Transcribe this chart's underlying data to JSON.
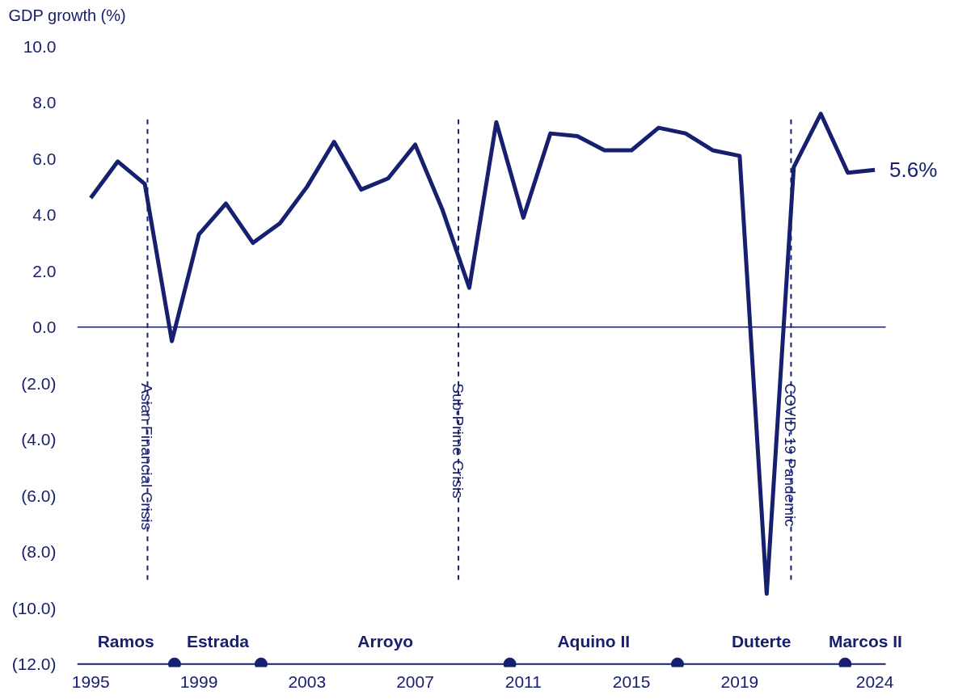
{
  "chart_data": {
    "type": "line",
    "ylabel": "GDP growth (%)",
    "x": [
      1995,
      1996,
      1997,
      1998,
      1999,
      2000,
      2001,
      2002,
      2003,
      2004,
      2005,
      2006,
      2007,
      2008,
      2009,
      2010,
      2011,
      2012,
      2013,
      2014,
      2015,
      2016,
      2017,
      2018,
      2019,
      2020,
      2021,
      2022,
      2023,
      2024
    ],
    "series": [
      {
        "color": "#17206e",
        "values": [
          4.6,
          5.9,
          5.1,
          -0.5,
          3.3,
          4.4,
          3.0,
          3.7,
          5.0,
          6.6,
          4.9,
          5.3,
          6.5,
          4.2,
          1.4,
          7.3,
          3.9,
          6.9,
          6.8,
          6.3,
          6.3,
          7.1,
          6.9,
          6.3,
          6.1,
          -9.5,
          5.7,
          7.6,
          5.5,
          5.6
        ],
        "value_labels": [
          null,
          null,
          null,
          null,
          null,
          null,
          null,
          null,
          null,
          null,
          null,
          null,
          null,
          null,
          null,
          null,
          null,
          null,
          null,
          null,
          null,
          null,
          null,
          null,
          null,
          null,
          null,
          null,
          null,
          "5.6%"
        ]
      },
      {
        "type": "scatter",
        "color": "#17206e",
        "marker": "circle",
        "x": [
          1998.1,
          2001.3,
          2010.5,
          2016.7,
          2022.9
        ],
        "values": [
          -12,
          -12,
          -12,
          -12,
          -12
        ]
      }
    ],
    "xlim": [
      1994.5,
      2024.4
    ],
    "xticks": [
      1995,
      1999,
      2003,
      2007,
      2011,
      2015,
      2019,
      2024
    ],
    "ylim": [
      -12,
      10
    ],
    "yticks": [
      {
        "value": -12,
        "label": "(12.0)"
      },
      {
        "value": -10,
        "label": "(10.0)"
      },
      {
        "value": -8,
        "label": "(8.0)"
      },
      {
        "value": -6,
        "label": "(6.0)"
      },
      {
        "value": -4,
        "label": "(4.0)"
      },
      {
        "value": -2,
        "label": "(2.0)"
      },
      {
        "value": 0,
        "label": "0.0"
      },
      {
        "value": 2,
        "label": "2.0"
      },
      {
        "value": 4,
        "label": "4.0"
      },
      {
        "value": 6,
        "label": "6.0"
      },
      {
        "value": 8,
        "label": "8.0"
      },
      {
        "value": 10,
        "label": "10.0"
      }
    ],
    "ref_lines": [
      {
        "axis": "x",
        "value": 1997.1,
        "label": "Asian Financial Crisis",
        "line_style": "dashed"
      },
      {
        "axis": "x",
        "value": 2008.6,
        "label": "Sub-Prime Crisis",
        "line_style": "dashed"
      },
      {
        "axis": "x",
        "value": 2020.9,
        "label": "COVID-19 Pandemic",
        "line_style": "dashed"
      },
      {
        "axis": "y",
        "value": 0,
        "line_style": "solid"
      }
    ],
    "annotations": [
      "Ramos",
      "Estrada",
      "Arroyo",
      "Aquino II",
      "Duterte",
      "Marcos II"
    ],
    "grid": false
  }
}
